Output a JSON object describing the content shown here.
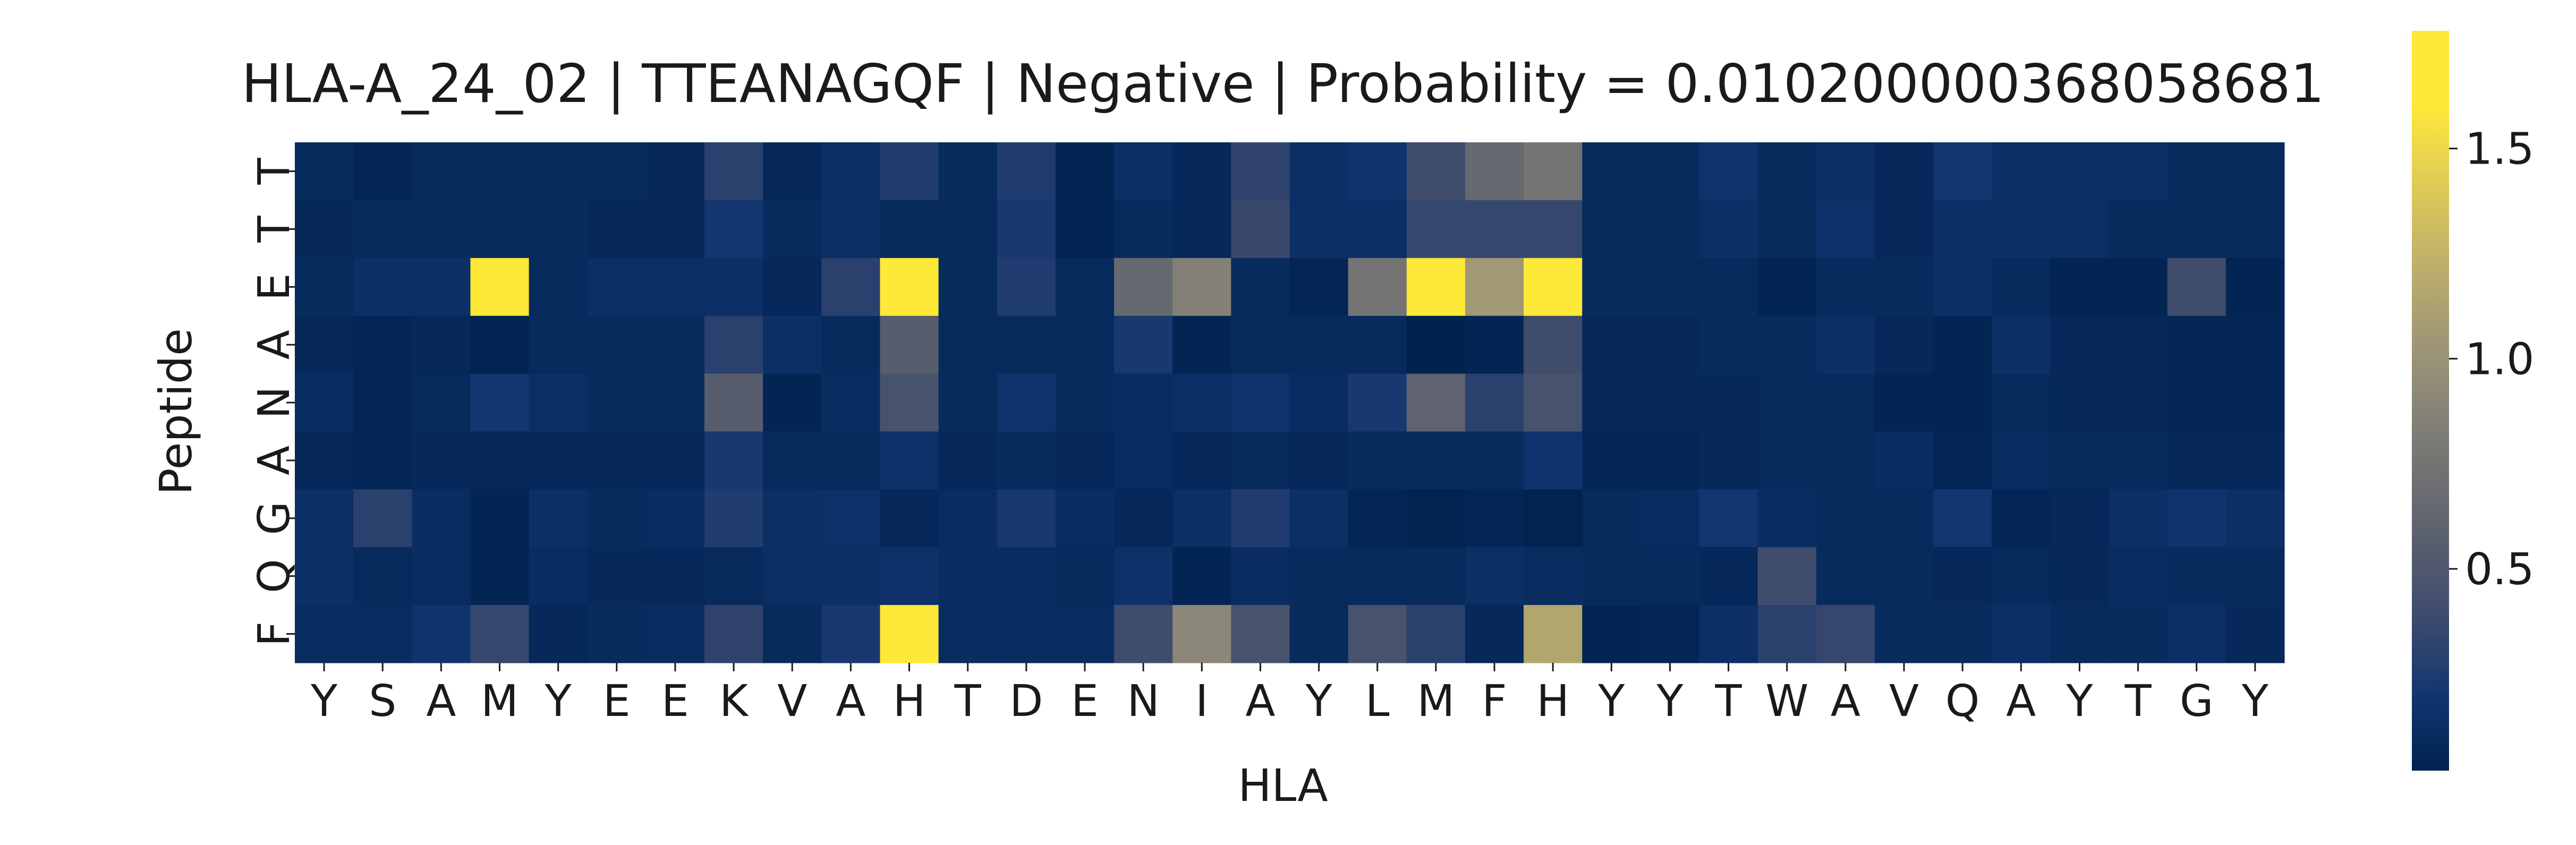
{
  "chart_data": {
    "type": "heatmap",
    "title": "HLA-A_24_02 | TTEANAGQF | Negative | Probability = 0.010200000368058681",
    "xlabel": "HLA",
    "ylabel": "Peptide",
    "x_ticklabels": [
      "Y",
      "S",
      "A",
      "M",
      "Y",
      "E",
      "E",
      "K",
      "V",
      "A",
      "H",
      "T",
      "D",
      "E",
      "N",
      "I",
      "A",
      "Y",
      "L",
      "M",
      "F",
      "H",
      "Y",
      "Y",
      "T",
      "W",
      "A",
      "V",
      "Q",
      "A",
      "Y",
      "T",
      "G",
      "Y"
    ],
    "y_ticklabels": [
      "T",
      "T",
      "E",
      "A",
      "N",
      "A",
      "G",
      "Q",
      "F"
    ],
    "colormap": "cividis",
    "colorbar": {
      "vmin": 0.02,
      "vmax": 1.78,
      "ticks": [
        0.5,
        1.0,
        1.5
      ],
      "tick_labels": [
        "0.5",
        "1.0",
        "1.5"
      ]
    },
    "values": [
      [
        0.1,
        0.06,
        0.1,
        0.1,
        0.1,
        0.1,
        0.08,
        0.3,
        0.08,
        0.14,
        0.25,
        0.1,
        0.25,
        0.05,
        0.14,
        0.08,
        0.32,
        0.14,
        0.18,
        0.4,
        0.65,
        0.75,
        0.1,
        0.1,
        0.18,
        0.1,
        0.14,
        0.08,
        0.2,
        0.14,
        0.14,
        0.14,
        0.1,
        0.1
      ],
      [
        0.08,
        0.1,
        0.1,
        0.1,
        0.1,
        0.08,
        0.08,
        0.2,
        0.1,
        0.14,
        0.1,
        0.1,
        0.22,
        0.05,
        0.1,
        0.08,
        0.36,
        0.14,
        0.14,
        0.35,
        0.35,
        0.35,
        0.1,
        0.1,
        0.14,
        0.1,
        0.16,
        0.08,
        0.14,
        0.14,
        0.14,
        0.1,
        0.1,
        0.1
      ],
      [
        0.1,
        0.14,
        0.14,
        1.78,
        0.1,
        0.14,
        0.14,
        0.14,
        0.08,
        0.3,
        1.72,
        0.1,
        0.25,
        0.1,
        0.65,
        0.85,
        0.1,
        0.06,
        0.75,
        1.72,
        1.05,
        1.78,
        0.1,
        0.1,
        0.1,
        0.05,
        0.1,
        0.1,
        0.14,
        0.1,
        0.05,
        0.05,
        0.4,
        0.05
      ],
      [
        0.08,
        0.06,
        0.08,
        0.04,
        0.1,
        0.1,
        0.1,
        0.3,
        0.14,
        0.1,
        0.55,
        0.1,
        0.1,
        0.1,
        0.22,
        0.05,
        0.1,
        0.1,
        0.1,
        0.02,
        0.05,
        0.4,
        0.08,
        0.08,
        0.1,
        0.1,
        0.14,
        0.08,
        0.05,
        0.14,
        0.08,
        0.08,
        0.06,
        0.06
      ],
      [
        0.12,
        0.06,
        0.1,
        0.2,
        0.14,
        0.1,
        0.1,
        0.55,
        0.05,
        0.12,
        0.45,
        0.1,
        0.18,
        0.1,
        0.12,
        0.14,
        0.18,
        0.12,
        0.22,
        0.6,
        0.3,
        0.45,
        0.08,
        0.08,
        0.08,
        0.1,
        0.1,
        0.05,
        0.05,
        0.1,
        0.08,
        0.08,
        0.06,
        0.06
      ],
      [
        0.08,
        0.06,
        0.08,
        0.08,
        0.08,
        0.08,
        0.08,
        0.22,
        0.1,
        0.1,
        0.16,
        0.08,
        0.1,
        0.08,
        0.12,
        0.08,
        0.1,
        0.08,
        0.1,
        0.1,
        0.1,
        0.18,
        0.06,
        0.06,
        0.08,
        0.1,
        0.1,
        0.12,
        0.06,
        0.12,
        0.1,
        0.1,
        0.08,
        0.08
      ],
      [
        0.14,
        0.3,
        0.12,
        0.05,
        0.14,
        0.1,
        0.12,
        0.26,
        0.14,
        0.16,
        0.08,
        0.12,
        0.22,
        0.12,
        0.08,
        0.14,
        0.25,
        0.14,
        0.06,
        0.03,
        0.06,
        0.03,
        0.1,
        0.12,
        0.2,
        0.12,
        0.1,
        0.1,
        0.2,
        0.06,
        0.08,
        0.14,
        0.18,
        0.14
      ],
      [
        0.14,
        0.1,
        0.12,
        0.05,
        0.12,
        0.08,
        0.08,
        0.1,
        0.14,
        0.14,
        0.16,
        0.12,
        0.12,
        0.1,
        0.16,
        0.05,
        0.12,
        0.1,
        0.1,
        0.1,
        0.14,
        0.12,
        0.1,
        0.1,
        0.08,
        0.4,
        0.1,
        0.1,
        0.08,
        0.1,
        0.08,
        0.12,
        0.1,
        0.1
      ],
      [
        0.12,
        0.12,
        0.18,
        0.35,
        0.08,
        0.1,
        0.12,
        0.32,
        0.1,
        0.22,
        1.75,
        0.12,
        0.12,
        0.12,
        0.4,
        0.9,
        0.45,
        0.1,
        0.45,
        0.3,
        0.08,
        1.15,
        0.05,
        0.06,
        0.14,
        0.3,
        0.35,
        0.1,
        0.1,
        0.14,
        0.1,
        0.1,
        0.14,
        0.08
      ]
    ]
  }
}
